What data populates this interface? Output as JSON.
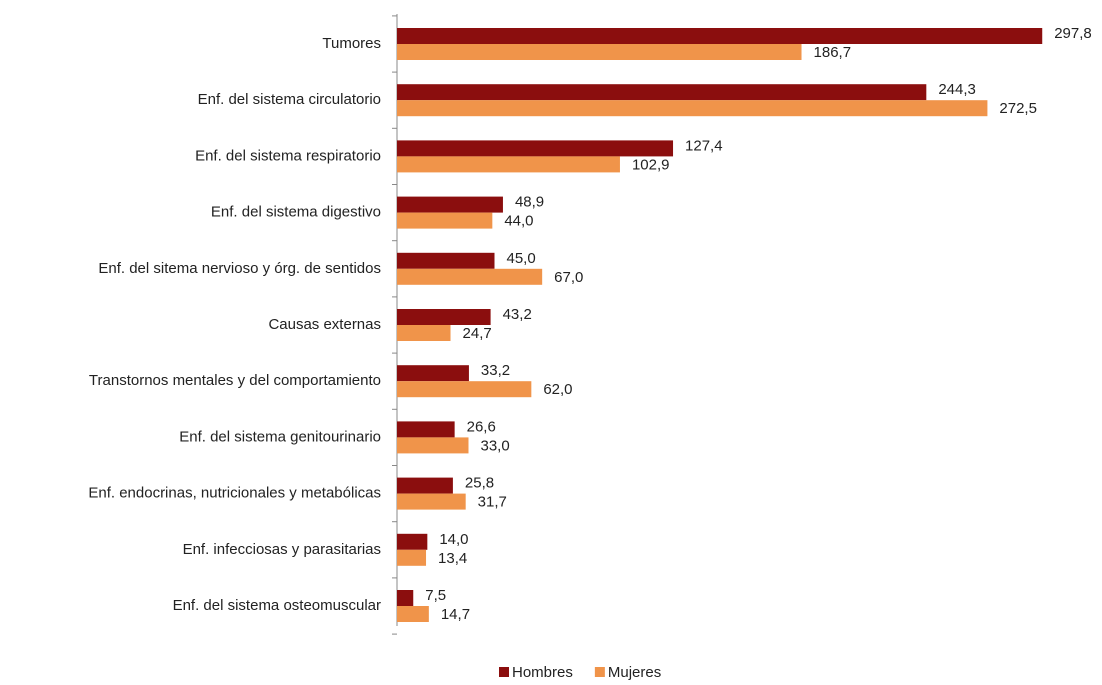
{
  "chart_data": {
    "type": "hbar",
    "categories": [
      "Tumores",
      "Enf. del sistema circulatorio",
      "Enf. del sistema respiratorio",
      "Enf. del sistema digestivo",
      "Enf. del sitema nervioso y órg. de sentidos",
      "Causas externas",
      "Transtornos mentales y del comportamiento",
      "Enf. del sistema genitourinario",
      "Enf. endocrinas, nutricionales y metabólicas",
      "Enf. infecciosas y parasitarias",
      "Enf. del sistema osteomuscular"
    ],
    "series": [
      {
        "name": "Hombres",
        "color": "#8b0e0e",
        "values": [
          297.8,
          244.3,
          127.4,
          48.9,
          45.0,
          43.2,
          33.2,
          26.6,
          25.8,
          14.0,
          7.5
        ],
        "value_labels": [
          "297,8",
          "244,3",
          "127,4",
          "48,9",
          "45,0",
          "43,2",
          "33,2",
          "26,6",
          "25,8",
          "14,0",
          "7,5"
        ]
      },
      {
        "name": "Mujeres",
        "color": "#f0944a",
        "values": [
          186.7,
          272.5,
          102.9,
          44.0,
          67.0,
          24.7,
          62.0,
          33.0,
          31.7,
          13.4,
          14.7
        ],
        "value_labels": [
          "186,7",
          "272,5",
          "102,9",
          "44,0",
          "67,0",
          "24,7",
          "62,0",
          "33,0",
          "31,7",
          "13,4",
          "14,7"
        ]
      }
    ],
    "xlim": [
      0,
      300
    ],
    "legend": "bottom"
  }
}
